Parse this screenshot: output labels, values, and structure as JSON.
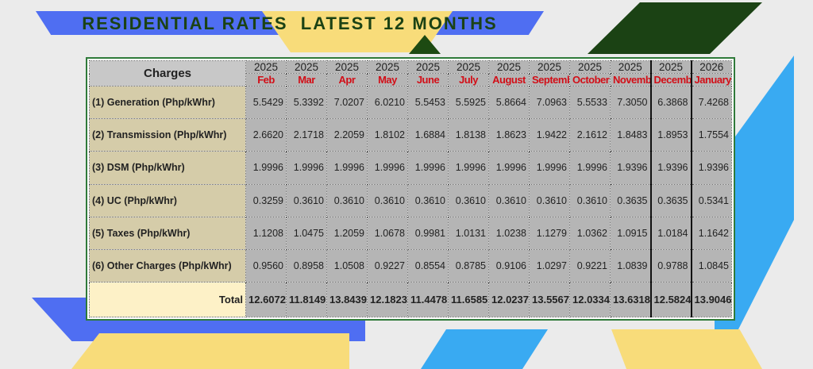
{
  "title": "RESIDENTIAL RATES  LATEST 12 MONTHS",
  "table": {
    "corner_header": "Charges",
    "years": [
      "2025",
      "2025",
      "2025",
      "2025",
      "2025",
      "2025",
      "2025",
      "2025",
      "2025",
      "2025",
      "2025",
      "2026"
    ],
    "months": [
      "Feb",
      "Mar",
      "Apr",
      "May",
      "June",
      "July",
      "August",
      "September",
      "October",
      "November",
      "December",
      "January"
    ],
    "rows": [
      {
        "label": "(1) Generation (Php/kWhr)",
        "values": [
          "5.5429",
          "5.3392",
          "7.0207",
          "6.0210",
          "5.5453",
          "5.5925",
          "5.8664",
          "7.0963",
          "5.5533",
          "7.3050",
          "6.3868",
          "7.4268"
        ]
      },
      {
        "label": "(2) Transmission  (Php/kWhr)",
        "values": [
          "2.6620",
          "2.1718",
          "2.2059",
          "1.8102",
          "1.6884",
          "1.8138",
          "1.8623",
          "1.9422",
          "2.1612",
          "1.8483",
          "1.8953",
          "1.7554"
        ]
      },
      {
        "label": "(3) DSM  (Php/kWhr)",
        "values": [
          "1.9996",
          "1.9996",
          "1.9996",
          "1.9996",
          "1.9996",
          "1.9996",
          "1.9996",
          "1.9996",
          "1.9996",
          "1.9396",
          "1.9396",
          "1.9396"
        ]
      },
      {
        "label": "(4) UC  (Php/kWhr)",
        "values": [
          "0.3259",
          "0.3610",
          "0.3610",
          "0.3610",
          "0.3610",
          "0.3610",
          "0.3610",
          "0.3610",
          "0.3610",
          "0.3635",
          "0.3635",
          "0.5341"
        ]
      },
      {
        "label": "(5) Taxes  (Php/kWhr)",
        "values": [
          "1.1208",
          "1.0475",
          "1.2059",
          "1.0678",
          "0.9981",
          "1.0131",
          "1.0238",
          "1.1279",
          "1.0362",
          "1.0915",
          "1.0184",
          "1.1642"
        ]
      },
      {
        "label": "(6) Other Charges  (Php/kWhr)",
        "values": [
          "0.9560",
          "0.8958",
          "1.0508",
          "0.9227",
          "0.8554",
          "0.8785",
          "0.9106",
          "1.0297",
          "0.9221",
          "1.0839",
          "0.9788",
          "1.0845"
        ]
      }
    ],
    "total": {
      "label": "Total",
      "values": [
        "12.6072",
        "11.8149",
        "13.8439",
        "12.1823",
        "11.4478",
        "11.6585",
        "12.0237",
        "13.5567",
        "12.0334",
        "13.6318",
        "12.5824",
        "13.9046"
      ]
    }
  }
}
